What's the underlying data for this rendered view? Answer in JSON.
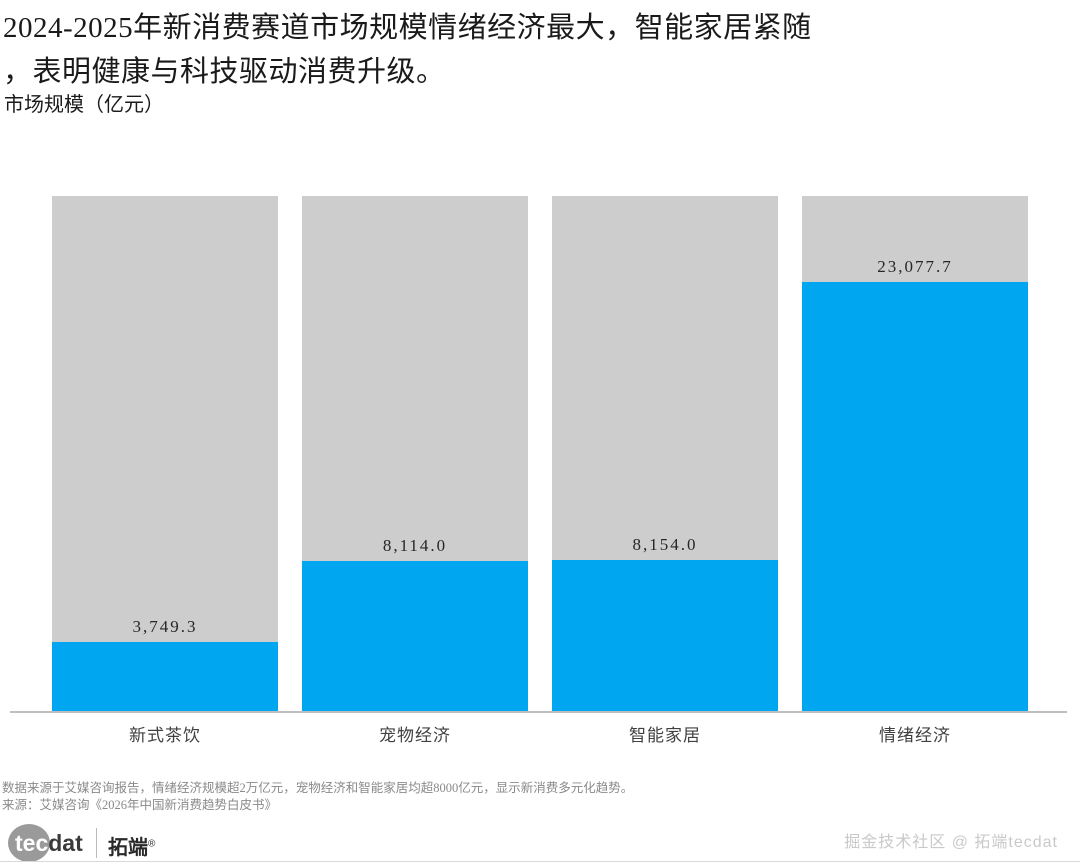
{
  "header": {
    "title_line1": "2024-2025年新消费赛道市场规模情绪经济最大，智能家居紧随",
    "title_line2": "，表明健康与科技驱动消费升级。",
    "subtitle": "市场规模（亿元）"
  },
  "chart_data": {
    "type": "bar",
    "title": "2024-2025年新消费赛道市场规模情绪经济最大，智能家居紧随，表明健康与科技驱动消费升级。",
    "ylabel": "市场规模（亿元）",
    "categories": [
      "新式茶饮",
      "宠物经济",
      "智能家居",
      "情绪经济"
    ],
    "values": [
      3749.3,
      8114.0,
      8154.0,
      23077.7
    ],
    "value_labels": [
      "3,749.3",
      "8,114.0",
      "8,154.0",
      "23,077.7"
    ],
    "ylim": [
      0,
      27693.2
    ],
    "grid": false,
    "legend": "none",
    "bar_color": "#00a6f0",
    "track_color": "#cdcdcd"
  },
  "footnote": {
    "line1": "数据来源于艾媒咨询报告，情绪经济规模超2万亿元，宠物经济和智能家居均超8000亿元，显示新消费多元化趋势。",
    "line2": "来源：艾媒咨询《2026年中国新消费趋势白皮书》"
  },
  "branding": {
    "logo_tec": "tec",
    "logo_dat": "dat",
    "logo_cn": "拓端",
    "logo_reg": "®",
    "credit": "掘金技术社区 @ 拓端tecdat"
  }
}
